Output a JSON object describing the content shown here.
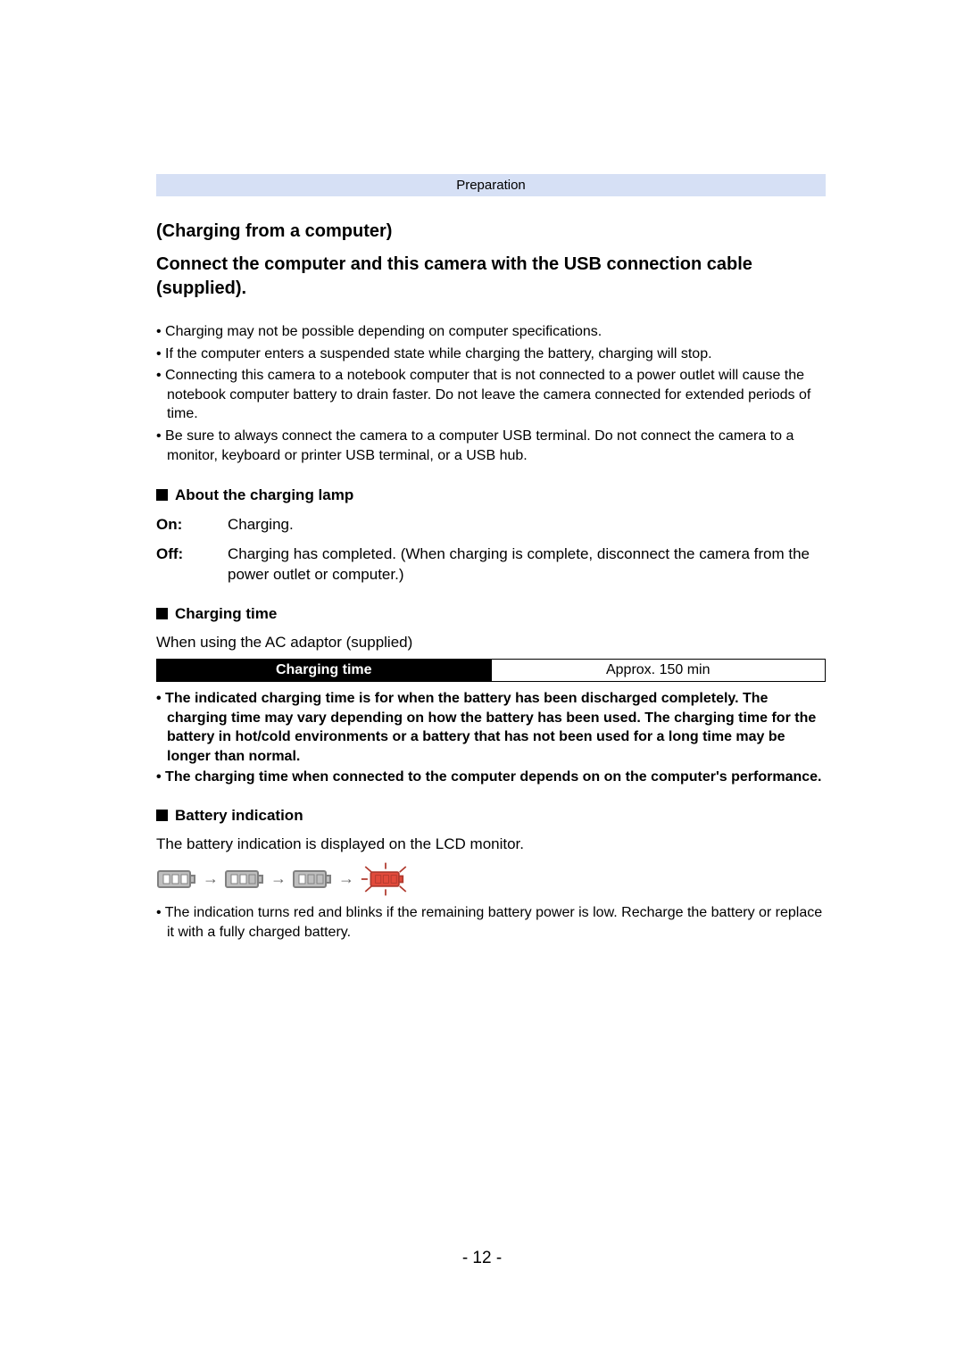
{
  "header": {
    "label": "Preparation"
  },
  "section": {
    "title1": "(Charging from a computer)",
    "title2": "Connect the computer and this camera with the USB connection cable (supplied)."
  },
  "bullets1": [
    "Charging may not be possible depending on computer specifications.",
    "If the computer enters a suspended state while charging the battery, charging will stop.",
    "Connecting this camera to a notebook computer that is not connected to a power outlet will cause the notebook computer battery to drain faster. Do not leave the camera connected for extended periods of time.",
    "Be sure to always connect the camera to a computer USB terminal. Do not connect the camera to a monitor, keyboard or printer USB terminal, or a USB hub."
  ],
  "lamp": {
    "heading": "About the charging lamp",
    "rows": [
      {
        "label": "On:",
        "desc": "Charging."
      },
      {
        "label": "Off:",
        "desc": "Charging has completed. (When charging is complete, disconnect the camera from the power outlet or computer.)"
      }
    ]
  },
  "charging": {
    "heading": "Charging time",
    "note": "When using the AC adaptor (supplied)",
    "table": {
      "header": "Charging time",
      "value": "Approx. 150 min"
    }
  },
  "bold_bullets": [
    "The indicated charging time is for when the battery has been discharged completely. The charging time may vary depending on how the battery has been used. The charging time for the battery in hot/cold environments or a battery that has not been used for a long time may be longer than normal.",
    "The charging time when connected to the computer depends on on the computer's performance."
  ],
  "battery": {
    "heading": "Battery indication",
    "note": "The battery indication is displayed on the LCD monitor.",
    "footnote": "The indication turns red and blinks if the remaining battery power is low. Recharge the battery or replace it with a fully charged battery."
  },
  "colors": {
    "band_bg": "#d6e0f5",
    "batt_body": "#bfbfbf",
    "batt_stroke": "#808080",
    "batt_fill_on": "#ffffff",
    "batt_fill_off": "#bfbfbf",
    "batt_red": "#e24a3b",
    "batt_red_stroke": "#b03a2e"
  },
  "battery_icons": [
    {
      "bars": [
        true,
        true,
        true
      ],
      "red": false,
      "rays": false
    },
    {
      "bars": [
        true,
        true,
        false
      ],
      "red": false,
      "rays": false
    },
    {
      "bars": [
        true,
        false,
        false
      ],
      "red": false,
      "rays": false
    },
    {
      "bars": [
        false,
        false,
        false
      ],
      "red": true,
      "rays": true
    }
  ],
  "page_number": "- 12 -"
}
